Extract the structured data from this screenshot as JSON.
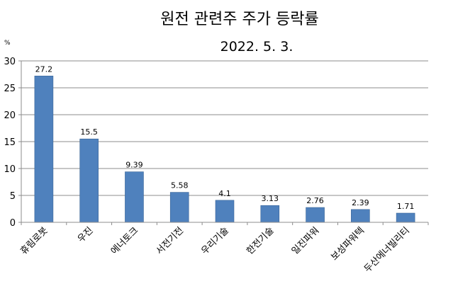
{
  "chart_data": {
    "type": "bar",
    "title": "원전 관련주 주가 등락률",
    "subtitle": "2022. 5. 3.",
    "unit_label": "%",
    "xlabel": "",
    "ylabel": "",
    "ylim": [
      0,
      30
    ],
    "yticks": [
      "0",
      "5",
      "10",
      "15",
      "20",
      "25",
      "30"
    ],
    "grid": true,
    "legend": "none",
    "categories": [
      "휴림로봇",
      "우진",
      "에너토크",
      "서전기전",
      "우리기술",
      "한전기술",
      "일진파워",
      "보성파워텍",
      "두산에너빌리티"
    ],
    "values": [
      27.2,
      15.5,
      9.39,
      5.58,
      4.1,
      3.13,
      2.76,
      2.39,
      1.71
    ],
    "value_labels": [
      "27.2",
      "15.5",
      "9.39",
      "5.58",
      "4.1",
      "3.13",
      "2.76",
      "2.39",
      "1.71"
    ],
    "bar_color": "#4f81bd"
  }
}
